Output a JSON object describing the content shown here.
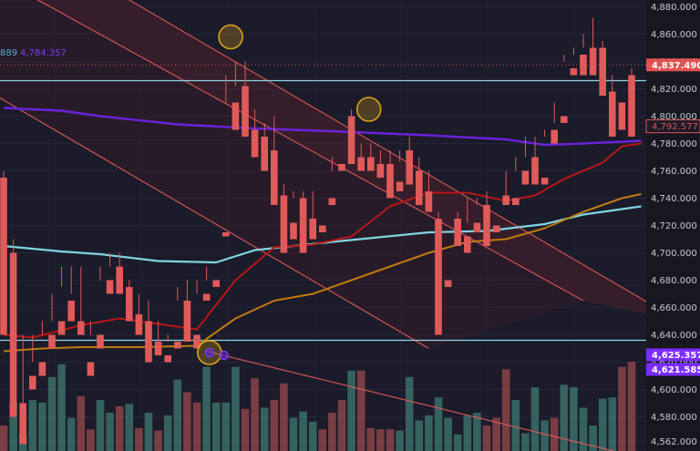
{
  "chart_data": {
    "type": "candlestick",
    "title": "",
    "ylim": [
      4555,
      4885
    ],
    "y_ticks": [
      "4,880.000",
      "4,860.000",
      "4,840.000",
      "4,820.000",
      "4,800.000",
      "4,780.000",
      "4,760.000",
      "4,740.000",
      "4,720.000",
      "4,700.000",
      "4,680.000",
      "4,660.000",
      "4,640.000",
      "4,620.000",
      "4,600.000",
      "4,580.000",
      "4,562.000"
    ],
    "y_tick_values": [
      4880,
      4860,
      4840,
      4820,
      4800,
      4780,
      4760,
      4740,
      4720,
      4700,
      4680,
      4660,
      4640,
      4620,
      4600,
      4580,
      4562
    ],
    "price_labels": [
      {
        "text": "4,837.490",
        "value": 4837.49,
        "color": "#e05252"
      },
      {
        "text": "4,792.577",
        "value": 4792.577,
        "color": "#e05252",
        "outline": true
      },
      {
        "text": "4,625.357",
        "value": 4625.357,
        "color": "#7b2cff"
      },
      {
        "text": "4,621.585",
        "value": 4621.585,
        "color": "#7b2cff"
      }
    ],
    "indicator_label": {
      "prefix": "889",
      "value": "4,784.357",
      "prefix_color": "#4fb0c6",
      "value_color": "#7b3df0"
    },
    "horizontal_levels": [
      4826,
      4636
    ],
    "candles": [
      [
        4755,
        4760,
        4650,
        4640
      ],
      [
        4700,
        4710,
        4590,
        4580
      ],
      [
        4590,
        4640,
        4580,
        4560
      ],
      [
        4610,
        4640,
        4620,
        4600
      ],
      [
        4620,
        4650,
        4640,
        4610
      ],
      [
        4640,
        4670,
        4650,
        4630
      ],
      [
        4650,
        4690,
        4675,
        4640
      ],
      [
        4665,
        4690,
        4670,
        4650
      ],
      [
        4650,
        4690,
        4640,
        4640
      ],
      [
        4620,
        4650,
        4640,
        4610
      ],
      [
        4640,
        4690,
        4680,
        4630
      ],
      [
        4680,
        4700,
        4690,
        4670
      ],
      [
        4690,
        4700,
        4675,
        4670
      ],
      [
        4675,
        4680,
        4655,
        4650
      ],
      [
        4655,
        4670,
        4650,
        4640
      ],
      [
        4650,
        4665,
        4635,
        4620
      ],
      [
        4635,
        4650,
        4630,
        4625
      ],
      [
        4625,
        4640,
        4635,
        4620
      ],
      [
        4635,
        4675,
        4665,
        4630
      ],
      [
        4665,
        4680,
        4640,
        4635
      ],
      [
        4640,
        4680,
        4670,
        4630
      ],
      [
        4670,
        4690,
        4680,
        4665
      ],
      [
        4680,
        4700,
        4700,
        4675
      ],
      [
        4715,
        4830,
        4810,
        4712
      ],
      [
        4810,
        4840,
        4822,
        4790
      ],
      [
        4822,
        4840,
        4790,
        4785
      ],
      [
        4790,
        4805,
        4785,
        4770
      ],
      [
        4785,
        4795,
        4775,
        4760
      ],
      [
        4775,
        4800,
        4740,
        4735
      ],
      [
        4742,
        4750,
        4722,
        4700
      ],
      [
        4722,
        4745,
        4740,
        4710
      ],
      [
        4740,
        4745,
        4725,
        4700
      ],
      [
        4725,
        4745,
        4720,
        4710
      ],
      [
        4720,
        4740,
        4740,
        4715
      ],
      [
        4740,
        4770,
        4760,
        4735
      ],
      [
        4765,
        4800,
        4800,
        4760
      ],
      [
        4800,
        4805,
        4770,
        4765
      ],
      [
        4770,
        4780,
        4770,
        4760
      ],
      [
        4770,
        4780,
        4765,
        4760
      ],
      [
        4765,
        4775,
        4765,
        4755
      ],
      [
        4765,
        4775,
        4752,
        4740
      ],
      [
        4752,
        4775,
        4767,
        4745
      ],
      [
        4775,
        4785,
        4755,
        4750
      ],
      [
        4760,
        4770,
        4745,
        4735
      ],
      [
        4745,
        4760,
        4740,
        4730
      ],
      [
        4725,
        4730,
        4680,
        4640
      ],
      [
        4680,
        4725,
        4725,
        4675
      ],
      [
        4725,
        4730,
        4712,
        4705
      ],
      [
        4712,
        4740,
        4722,
        4700
      ],
      [
        4722,
        4740,
        4735,
        4715
      ],
      [
        4735,
        4745,
        4720,
        4705
      ],
      [
        4720,
        4740,
        4740,
        4715
      ],
      [
        4742,
        4760,
        4742,
        4735
      ],
      [
        4740,
        4770,
        4760,
        4735
      ],
      [
        4760,
        4785,
        4770,
        4750
      ],
      [
        4770,
        4785,
        4755,
        4750
      ],
      [
        4755,
        4790,
        4785,
        4750
      ],
      [
        4790,
        4810,
        4795,
        4780
      ],
      [
        4800,
        4845,
        4840,
        4795
      ],
      [
        4835,
        4850,
        4845,
        4830
      ],
      [
        4845,
        4860,
        4850,
        4830
      ],
      [
        4850,
        4872,
        4845,
        4830
      ],
      [
        4850,
        4855,
        4818,
        4815
      ],
      [
        4818,
        4830,
        4790,
        4785
      ],
      [
        4810,
        4830,
        4830,
        4790
      ],
      [
        4830,
        4835,
        4795,
        4785
      ]
    ],
    "volume": [
      [
        0.2,
        "down"
      ],
      [
        0.38,
        "up"
      ],
      [
        0.13,
        "up"
      ],
      [
        0.4,
        "up"
      ],
      [
        0.38,
        "up"
      ],
      [
        0.58,
        "up"
      ],
      [
        0.68,
        "up"
      ],
      [
        0.26,
        "up"
      ],
      [
        0.43,
        "down"
      ],
      [
        0.17,
        "down"
      ],
      [
        0.4,
        "up"
      ],
      [
        0.3,
        "up"
      ],
      [
        0.35,
        "down"
      ],
      [
        0.37,
        "up"
      ],
      [
        0.18,
        "down"
      ],
      [
        0.3,
        "up"
      ],
      [
        0.16,
        "down"
      ],
      [
        0.28,
        "up"
      ],
      [
        0.56,
        "up"
      ],
      [
        0.46,
        "down"
      ],
      [
        0.38,
        "down"
      ],
      [
        0.66,
        "up"
      ],
      [
        0.38,
        "up"
      ],
      [
        0.38,
        "up"
      ],
      [
        0.66,
        "up"
      ],
      [
        0.33,
        "down"
      ],
      [
        0.57,
        "down"
      ],
      [
        0.34,
        "up"
      ],
      [
        0.4,
        "down"
      ],
      [
        0.53,
        "down"
      ],
      [
        0.26,
        "up"
      ],
      [
        0.31,
        "up"
      ],
      [
        0.23,
        "up"
      ],
      [
        0.17,
        "down"
      ],
      [
        0.3,
        "down"
      ],
      [
        0.4,
        "down"
      ],
      [
        0.63,
        "up"
      ],
      [
        0.63,
        "down"
      ],
      [
        0.18,
        "down"
      ],
      [
        0.17,
        "down"
      ],
      [
        0.17,
        "down"
      ],
      [
        0.16,
        "up"
      ],
      [
        0.58,
        "up"
      ],
      [
        0.24,
        "up"
      ],
      [
        0.28,
        "up"
      ],
      [
        0.42,
        "up"
      ],
      [
        0.26,
        "up"
      ],
      [
        0.13,
        "up"
      ],
      [
        0.28,
        "up"
      ],
      [
        0.3,
        "up"
      ],
      [
        0.2,
        "down"
      ],
      [
        0.26,
        "down"
      ],
      [
        0.64,
        "down"
      ],
      [
        0.4,
        "up"
      ],
      [
        0.14,
        "up"
      ],
      [
        0.5,
        "up"
      ],
      [
        0.24,
        "up"
      ],
      [
        0.26,
        "down"
      ],
      [
        0.52,
        "up"
      ],
      [
        0.5,
        "up"
      ],
      [
        0.34,
        "up"
      ],
      [
        0.2,
        "up"
      ],
      [
        0.41,
        "up"
      ],
      [
        0.42,
        "up"
      ],
      [
        0.66,
        "down"
      ],
      [
        0.7,
        "down"
      ]
    ],
    "moving_averages": [
      {
        "color": "#6a22d9",
        "width": 2.4,
        "values": [
          [
            0,
            4806
          ],
          [
            6,
            4804
          ],
          [
            10,
            4800
          ],
          [
            18,
            4794
          ],
          [
            26,
            4791
          ],
          [
            34,
            4789
          ],
          [
            44,
            4786
          ],
          [
            52,
            4783
          ],
          [
            56,
            4779
          ],
          [
            60,
            4780
          ],
          [
            66,
            4782
          ]
        ]
      },
      {
        "color": "#7fd4e0",
        "width": 2.2,
        "values": [
          [
            0,
            4705
          ],
          [
            6,
            4701
          ],
          [
            10,
            4699
          ],
          [
            16,
            4694
          ],
          [
            22,
            4693
          ],
          [
            26,
            4702
          ],
          [
            34,
            4708
          ],
          [
            44,
            4715
          ],
          [
            50,
            4716
          ],
          [
            56,
            4721
          ],
          [
            60,
            4728
          ],
          [
            66,
            4734
          ]
        ]
      },
      {
        "color": "#b81616",
        "width": 2.0,
        "values": [
          [
            0,
            4640
          ],
          [
            3,
            4638
          ],
          [
            8,
            4647
          ],
          [
            12,
            4652
          ],
          [
            16,
            4648
          ],
          [
            20,
            4644
          ],
          [
            24,
            4680
          ],
          [
            28,
            4704
          ],
          [
            32,
            4706
          ],
          [
            36,
            4712
          ],
          [
            40,
            4734
          ],
          [
            44,
            4744
          ],
          [
            48,
            4744
          ],
          [
            52,
            4738
          ],
          [
            55,
            4742
          ],
          [
            58,
            4754
          ],
          [
            62,
            4766
          ],
          [
            64,
            4778
          ],
          [
            66,
            4780
          ]
        ]
      },
      {
        "color": "#c07a0e",
        "width": 2.0,
        "values": [
          [
            0,
            4628
          ],
          [
            4,
            4630
          ],
          [
            8,
            4631
          ],
          [
            14,
            4631
          ],
          [
            20,
            4632
          ],
          [
            24,
            4652
          ],
          [
            28,
            4665
          ],
          [
            32,
            4670
          ],
          [
            36,
            4680
          ],
          [
            40,
            4690
          ],
          [
            44,
            4700
          ],
          [
            48,
            4708
          ],
          [
            52,
            4710
          ],
          [
            56,
            4718
          ],
          [
            60,
            4730
          ],
          [
            64,
            4740
          ],
          [
            66,
            4743
          ]
        ]
      }
    ],
    "trendlines": [
      {
        "from": [
          -8,
          4930
        ],
        "to": [
          60,
          4665
        ]
      },
      {
        "from": [
          -2,
          4820
        ],
        "to": [
          44,
          4630
        ]
      },
      {
        "from": [
          13,
          4885
        ],
        "to": [
          70,
          4650
        ]
      },
      {
        "from": [
          21,
          4628
        ],
        "to": [
          66,
          4550
        ]
      }
    ],
    "markers": [
      {
        "type": "circle",
        "x": 23.5,
        "y": 4858,
        "color": "#d9a21b"
      },
      {
        "type": "circle",
        "x": 37.8,
        "y": 4805,
        "color": "#d9a21b"
      },
      {
        "type": "circle",
        "x": 21.3,
        "y": 4627,
        "color": "#d9a21b"
      },
      {
        "type": "dot",
        "x": 21.3,
        "y": 4627,
        "color": "#5522cc"
      },
      {
        "type": "dot",
        "x": 22.8,
        "y": 4625,
        "color": "#5522cc"
      }
    ]
  }
}
